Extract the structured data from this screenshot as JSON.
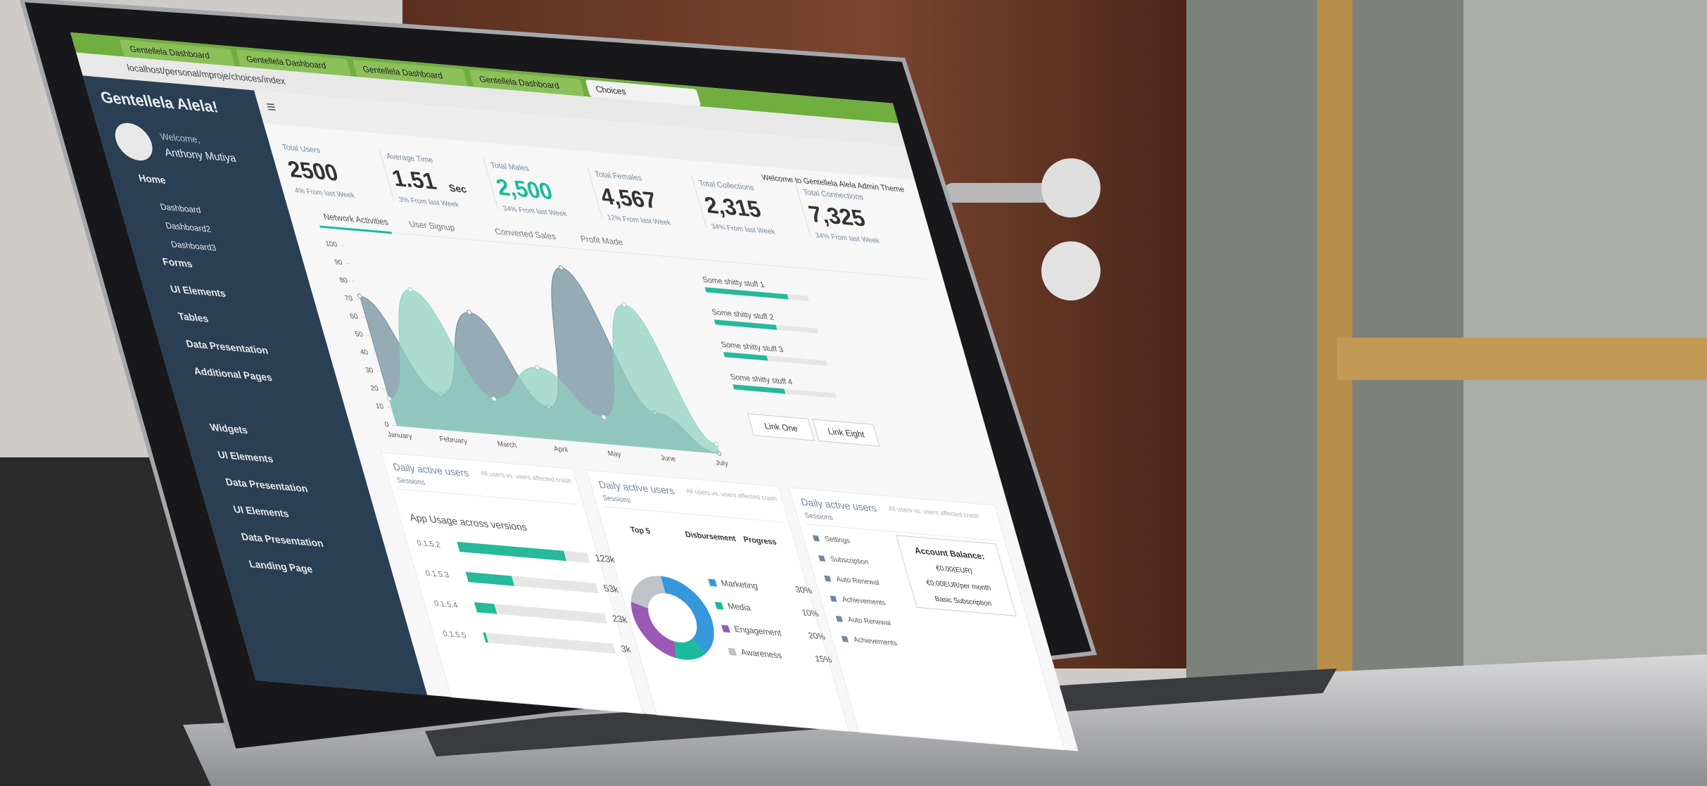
{
  "browser": {
    "tabs": [
      "Gentellela Dashboard",
      "Gentellela Dashboard",
      "Gentellela Dashboard",
      "Gentellela Dashboard",
      "Choices"
    ],
    "url": "localhost/personal/mproje/choices/index"
  },
  "sidebar": {
    "brand": "Gentellela Alela!",
    "welcome": "Welcome,",
    "user": "Anthony Mutiya",
    "menu": [
      "Home",
      "Dashboard",
      "Dashboard2",
      "Dashboard3",
      "Forms",
      "UI Elements",
      "Tables",
      "Data Presentation",
      "Additional Pages",
      "Widgets",
      "UI Elements",
      "Data Presentation",
      "UI Elements",
      "Data Presentation",
      "Landing Page"
    ]
  },
  "header": {
    "welcome": "Welcome to Gentellela Alela Admin Theme"
  },
  "stats": [
    {
      "label": "Total Users",
      "value": "2500",
      "change": "4% From last Week"
    },
    {
      "label": "Average Time",
      "value": "1.51",
      "unit": "Sec",
      "change": "3% From last Week"
    },
    {
      "label": "Total Males",
      "value": "2,500",
      "change": "34% From last Week"
    },
    {
      "label": "Total Females",
      "value": "4,567",
      "change": "12% From last Week"
    },
    {
      "label": "Total Collections",
      "value": "2,315",
      "change": "34% From last Week"
    },
    {
      "label": "Total Connections",
      "value": "7,325",
      "change": "34% From last Week"
    }
  ],
  "tabs": [
    "Network Activities",
    "User Signup",
    "Converted Sales",
    "Profit Made"
  ],
  "buttons": [
    "Link One",
    "Link Eight"
  ],
  "chart_data": [
    {
      "type": "area",
      "categories": [
        "January",
        "February",
        "March",
        "April",
        "May",
        "June",
        "July"
      ],
      "series": [
        {
          "color": "#6f8f9c",
          "values": [
            72,
            20,
            68,
            18,
            98,
            20,
            0
          ]
        },
        {
          "color": "#8fd0bf",
          "values": [
            15,
            78,
            20,
            40,
            15,
            80,
            5
          ]
        }
      ],
      "ylim": [
        0,
        100
      ],
      "yticks": [
        0,
        10,
        20,
        30,
        40,
        50,
        60,
        70,
        80,
        90,
        100
      ]
    },
    {
      "type": "progress",
      "categories": [
        "Some shitty stuff 1",
        "Some shitty stuff 2",
        "Some shitty stuff 3",
        "Some shitty stuff 4"
      ],
      "values": [
        80,
        60,
        42,
        50
      ],
      "xlim": [
        0,
        100
      ],
      "color": "#26b99a"
    },
    {
      "type": "hbar",
      "title": "App Usage across versions",
      "categories": [
        "0.1.5.2",
        "0.1.5.3",
        "0.1.5.4",
        "0.1.5.5"
      ],
      "values": [
        123000,
        53000,
        23000,
        3000
      ],
      "value_labels": [
        "123k",
        "53k",
        "23k",
        "3k"
      ],
      "xlim": [
        0,
        150000
      ],
      "color": "#26b99a"
    },
    {
      "type": "pie",
      "categories": [
        "Marketing",
        "Media",
        "Engagement",
        "Awareness"
      ],
      "values": [
        30,
        10,
        20,
        15
      ],
      "value_labels": [
        "30%",
        "10%",
        "20%",
        "15%"
      ],
      "colors": [
        "#3498db",
        "#1abb9c",
        "#9b59b6",
        "#bdc3c7"
      ]
    }
  ],
  "panels": [
    {
      "title": "Daily active users",
      "subtitle": "All users vs. users affected crash",
      "note": "Sessions"
    },
    {
      "title": "Daily active users",
      "subtitle": "All users vs. users affected crash",
      "note": "Sessions"
    },
    {
      "title": "Daily active users",
      "subtitle": "All users vs. users affected crash",
      "note": "Sessions"
    }
  ],
  "table_headers": [
    "Top 5",
    "Disbursement",
    "Progress"
  ],
  "settings": [
    "Settings",
    "Subscription",
    "Auto Renewal",
    "Achievements",
    "Auto Renewal",
    "Achievements"
  ],
  "account": {
    "title": "Account Balance:",
    "balance": "€0.00(EUR)",
    "rate": "€0.00EUR/per month",
    "plan": "Basic Subscription"
  }
}
